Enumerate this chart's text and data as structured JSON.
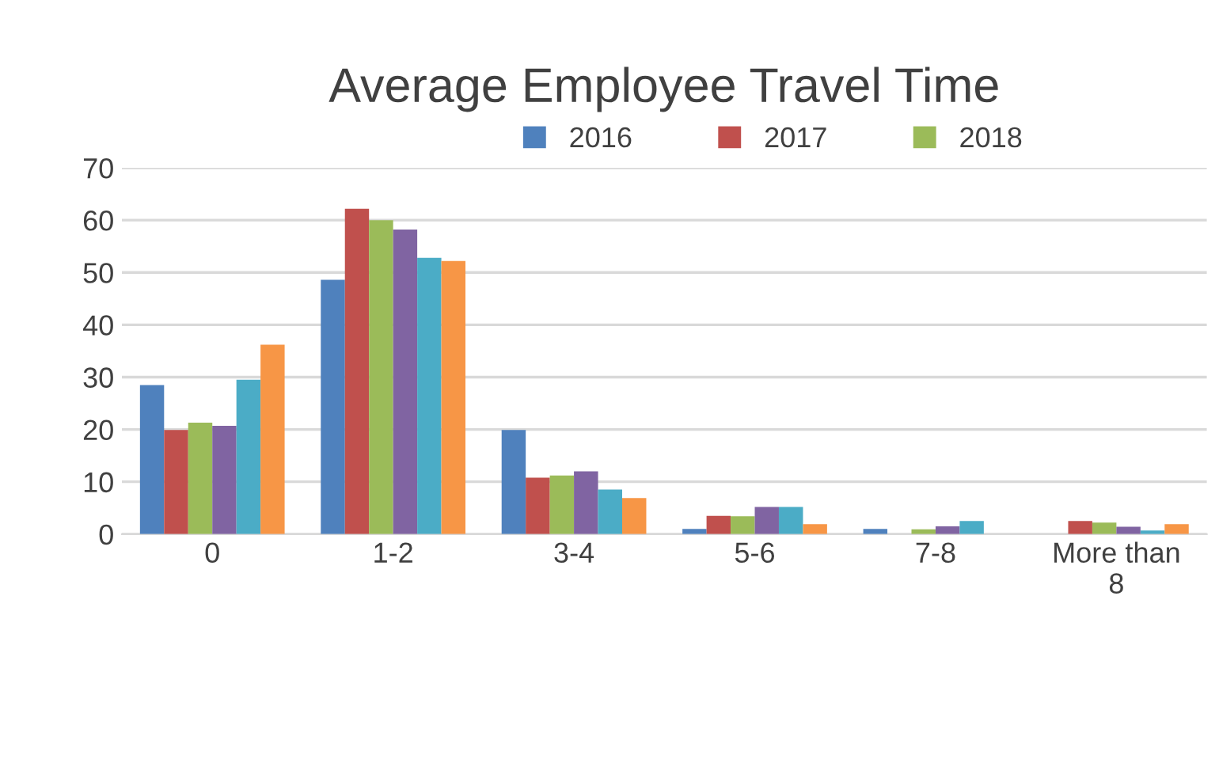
{
  "chart_data": {
    "type": "bar",
    "title": "Average Employee Travel Time",
    "categories": [
      "0",
      "1-2",
      "3-4",
      "5-6",
      "7-8",
      "More than\n8"
    ],
    "series": [
      {
        "name": "2016",
        "color": "#4f81bd",
        "values": [
          28.5,
          48.6,
          19.9,
          1,
          1,
          null
        ]
      },
      {
        "name": "2017",
        "color": "#c0504d",
        "values": [
          19.9,
          62.2,
          10.8,
          3.5,
          null,
          2.5
        ]
      },
      {
        "name": "2018",
        "color": "#9bbb59",
        "values": [
          21.3,
          60,
          11.2,
          3.4,
          0.9,
          2.2
        ]
      },
      {
        "color": "#8064a2",
        "values": [
          20.7,
          58.2,
          12,
          5.2,
          1.5,
          1.4
        ]
      },
      {
        "color": "#4bacc6",
        "values": [
          29.5,
          52.8,
          8.5,
          5.2,
          2.5,
          0.7
        ]
      },
      {
        "color": "#f79646",
        "values": [
          36.2,
          52.2,
          6.9,
          1.9,
          null,
          1.9
        ]
      }
    ],
    "ylim": [
      0,
      70
    ],
    "yticks": [
      0,
      10,
      20,
      30,
      40,
      50,
      60,
      70
    ],
    "grid": "y",
    "legend": "top"
  }
}
